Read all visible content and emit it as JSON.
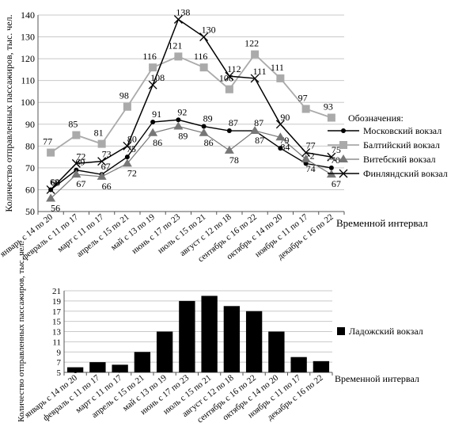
{
  "chart_data": [
    {
      "type": "line",
      "ylabel": "Количество отправленных пассажиров, тыс. чел.",
      "xlabel": "Временной интервал",
      "ylim": [
        50,
        140
      ],
      "yticks": [
        50,
        60,
        70,
        80,
        90,
        100,
        110,
        120,
        130,
        140
      ],
      "grid": true,
      "legend_position": "right",
      "legend_title": "Обозначения:",
      "categories": [
        "январь с 14 по 20",
        "февраль с 11 по 17",
        "март с 11 по 17",
        "апрель с 15 по 21",
        "май с 13 по 19",
        "июнь с 17 по 23",
        "июль с 15 по 21",
        "август с 12 по 18",
        "сентябрь с 16 по 22",
        "октябрь с 14 по 20",
        "ноябрь с 11 по 17",
        "декабрь с 16 по 22"
      ],
      "series": [
        {
          "name": "Московский вокзал",
          "marker": "circle",
          "color": "#000000",
          "labels": [
            "60",
            "69",
            "67",
            "75",
            "91",
            "92",
            "89",
            "87",
            "87",
            "79",
            "72",
            "70"
          ],
          "values": [
            60,
            69,
            67,
            75,
            91,
            92,
            89,
            87,
            87,
            79,
            72,
            70
          ]
        },
        {
          "name": "Балтийский вокзал",
          "marker": "square",
          "color": "#aaaaaa",
          "labels": [
            "77",
            "85",
            "81",
            "98",
            "116",
            "121",
            "116",
            "106",
            "122",
            "111",
            "97",
            "93"
          ],
          "values": [
            77,
            85,
            81,
            98,
            116,
            121,
            116,
            106,
            122,
            111,
            97,
            93
          ]
        },
        {
          "name": "Витебский вокзал",
          "marker": "triangle",
          "color": "#777777",
          "labels": [
            "56",
            "67",
            "66",
            "72",
            "86",
            "89",
            "86",
            "78",
            "87",
            "84",
            "74",
            "67"
          ],
          "values": [
            56,
            67,
            66,
            72,
            86,
            89,
            86,
            78,
            87,
            84,
            74,
            67
          ]
        },
        {
          "name": "Финляндский вокзал",
          "marker": "x",
          "color": "#000000",
          "labels": [
            "60",
            "72",
            "73",
            "80",
            "108",
            "138",
            "130",
            "112",
            "111",
            "90",
            "77",
            "75"
          ],
          "values": [
            60,
            72,
            73,
            80,
            108,
            138,
            130,
            112,
            111,
            90,
            77,
            75
          ]
        }
      ]
    },
    {
      "type": "bar",
      "ylabel": "Количество отправленных пассажиров, тыс. чел.",
      "xlabel": "Временной интервал",
      "ylim": [
        5,
        21
      ],
      "yticks": [
        5,
        7,
        9,
        11,
        13,
        15,
        17,
        19,
        21
      ],
      "grid": true,
      "legend_position": "right",
      "categories": [
        "январь с 14 по 20",
        "февраль с 11 по 17",
        "март с 11 по 17",
        "апрель с 15 по 21",
        "май с 13 по 19",
        "июнь с 17 по 23",
        "июль с 15 по 21",
        "август с 12 по 18",
        "сентябрь с 16 по 22",
        "октябрь с 14 по 20",
        "ноябрь с 11 по 17",
        "декабрь с 16 по 22"
      ],
      "series": [
        {
          "name": "Ладожский вокзал",
          "color": "#000000",
          "labels": [
            "6",
            "7",
            "6,5",
            "9",
            "13",
            "19",
            "20",
            "18",
            "17",
            "13",
            "8",
            "7,2"
          ],
          "values": [
            6,
            7,
            6.5,
            9,
            13,
            19,
            20,
            18,
            17,
            13,
            8,
            7.2
          ]
        }
      ]
    }
  ]
}
